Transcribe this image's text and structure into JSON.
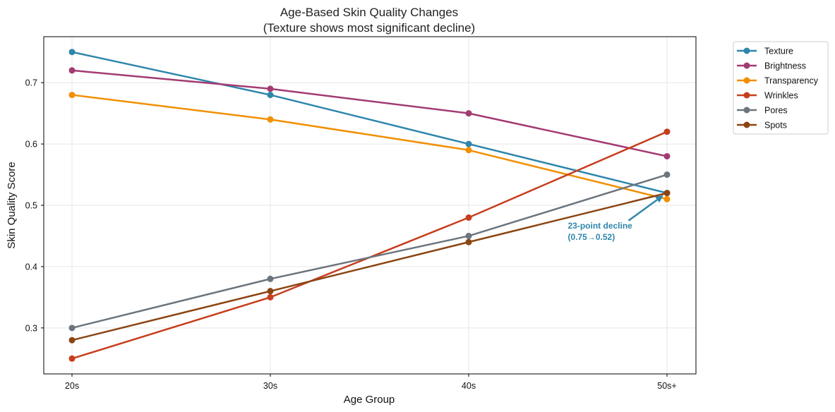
{
  "chart_data": {
    "type": "line",
    "title": "Age-Based Skin Quality Changes",
    "subtitle": "(Texture shows most significant decline)",
    "xlabel": "Age Group",
    "ylabel": "Skin Quality Score",
    "categories": [
      "20s",
      "30s",
      "40s",
      "50s+"
    ],
    "ylim": [
      0.225,
      0.775
    ],
    "yticks": [
      0.3,
      0.4,
      0.5,
      0.6,
      0.7
    ],
    "ytick_labels": [
      "0.3",
      "0.4",
      "0.5",
      "0.6",
      "0.7"
    ],
    "grid": true,
    "legend_position": "outside-top-right",
    "series": [
      {
        "name": "Texture",
        "color": "#2E86AB",
        "values": [
          0.75,
          0.68,
          0.6,
          0.52
        ]
      },
      {
        "name": "Brightness",
        "color": "#A23B72",
        "values": [
          0.72,
          0.69,
          0.65,
          0.58
        ]
      },
      {
        "name": "Transparency",
        "color": "#F18F01",
        "values": [
          0.68,
          0.64,
          0.59,
          0.51
        ]
      },
      {
        "name": "Wrinkles",
        "color": "#C73E1D",
        "values": [
          0.25,
          0.35,
          0.48,
          0.62
        ]
      },
      {
        "name": "Pores",
        "color": "#6C757D",
        "values": [
          0.3,
          0.38,
          0.45,
          0.55
        ]
      },
      {
        "name": "Spots",
        "color": "#8B4513",
        "values": [
          0.28,
          0.36,
          0.44,
          0.52
        ]
      }
    ],
    "annotation": {
      "line1": "23-point decline",
      "line2": "(0.75→0.52)",
      "color": "#2E86AB",
      "text_at": {
        "x": 2.5,
        "y": 0.46
      },
      "arrow_to": {
        "x": 3,
        "y": 0.52
      }
    }
  }
}
